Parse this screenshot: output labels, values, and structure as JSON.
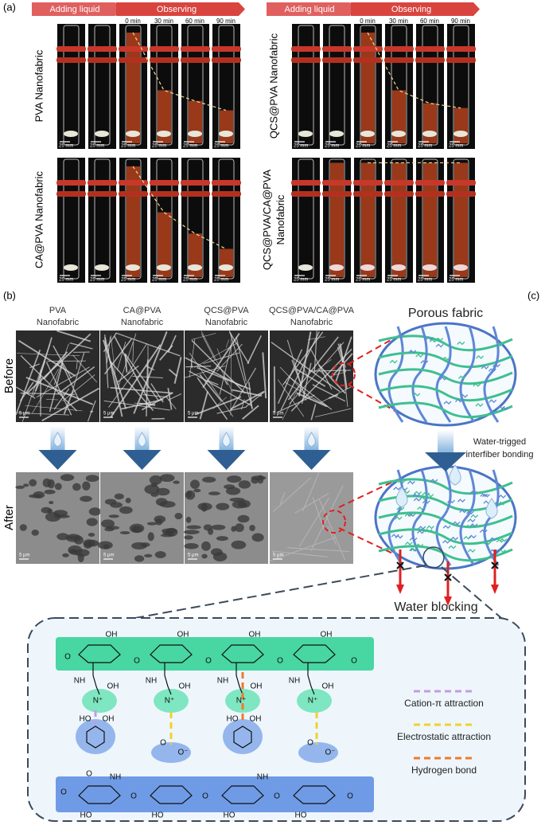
{
  "panel_a": {
    "label": "(a)",
    "step_adding": "Adding liquid",
    "step_observing": "Observing",
    "times": [
      "0 min",
      "30 min",
      "60 min",
      "90 min"
    ],
    "samples": [
      [
        "PVA Nanofabric"
      ],
      [
        "QCS@PVA Nanofabric"
      ],
      [
        "CA@PVA Nanofabric"
      ],
      [
        "QCS@PVA/CA@PVA",
        "Nanofabric"
      ]
    ],
    "scale": "25 mm"
  },
  "panel_b": {
    "label": "(b)",
    "columns": [
      [
        "PVA",
        "Nanofabric"
      ],
      [
        "CA@PVA",
        "Nanofabric"
      ],
      [
        "QCS@PVA",
        "Nanofabric"
      ],
      [
        "QCS@PVA/CA@PVA",
        "Nanofabric"
      ]
    ],
    "rows": [
      "Before",
      "After"
    ],
    "scale": "5 μm"
  },
  "panel_c": {
    "label": "(c)",
    "top": "Porous fabric",
    "process": [
      "Water-trigged",
      "interfiber bonding"
    ],
    "bottom": "Water blocking"
  },
  "mechanism": {
    "legend": [
      "Cation-π attraction",
      "Electrostatic attraction",
      "Hydrogen bond"
    ],
    "atoms": {
      "OH": "OH",
      "HO": "HO",
      "O": "O",
      "NH": "NH",
      "Nplus": "N⁺",
      "Ominus": "O⁻"
    }
  }
}
